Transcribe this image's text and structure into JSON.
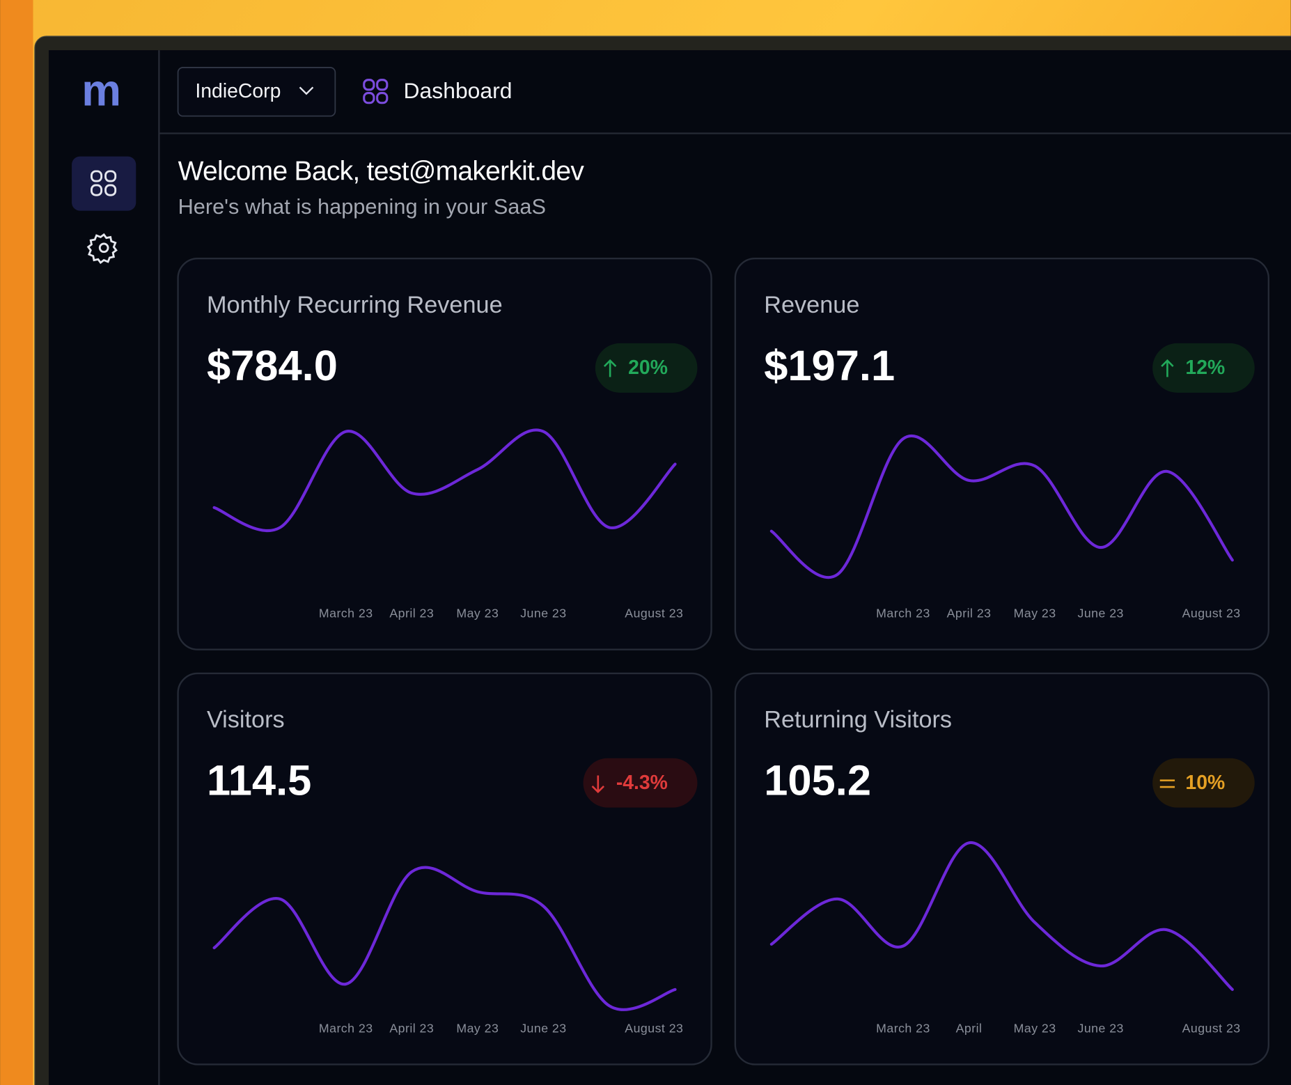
{
  "sidebar": {
    "logo": "m"
  },
  "header": {
    "org": "IndieCorp",
    "page": "Dashboard"
  },
  "welcome": {
    "title": "Welcome Back, test@makerkit.dev",
    "subtitle": "Here's what is happening in your SaaS"
  },
  "cards": [
    {
      "title": "Monthly Recurring Revenue",
      "value": "$784.0",
      "change": "20%",
      "trend": "up",
      "chart": {
        "type": "line",
        "categories": [
          null,
          null,
          "March 23",
          "April 23",
          "May 23",
          "June 23",
          null,
          "August 23"
        ],
        "values": [
          47,
          36,
          89,
          55,
          68,
          89,
          36,
          71
        ],
        "color": "#6d28d9",
        "ylim": [
          0,
          100
        ]
      }
    },
    {
      "title": "Revenue",
      "value": "$197.1",
      "change": "12%",
      "trend": "up",
      "chart": {
        "type": "line",
        "categories": [
          null,
          null,
          "March 23",
          "April 23",
          "May 23",
          "June 23",
          null,
          "August 23"
        ],
        "values": [
          34,
          10,
          85,
          62,
          70,
          25,
          67,
          18
        ],
        "color": "#6d28d9",
        "ylim": [
          0,
          100
        ]
      }
    },
    {
      "title": "Visitors",
      "value": "114.5",
      "change": "-4.3%",
      "trend": "down",
      "chart": {
        "type": "line",
        "categories": [
          null,
          null,
          "March 23",
          "April 23",
          "May 23",
          "June 23",
          null,
          "August 23"
        ],
        "values": [
          33,
          60,
          13,
          75,
          64,
          56,
          1,
          10
        ],
        "color": "#6d28d9",
        "ylim": [
          0,
          100
        ]
      }
    },
    {
      "title": "Returning Visitors",
      "value": "105.2",
      "change": "10%",
      "trend": "flat",
      "chart": {
        "type": "line",
        "categories": [
          null,
          null,
          "March 23",
          "April",
          "May 23",
          "June 23",
          null,
          "August 23"
        ],
        "values": [
          35,
          60,
          34,
          91,
          47,
          23,
          43,
          10
        ],
        "color": "#6d28d9",
        "ylim": [
          0,
          100
        ]
      }
    }
  ]
}
